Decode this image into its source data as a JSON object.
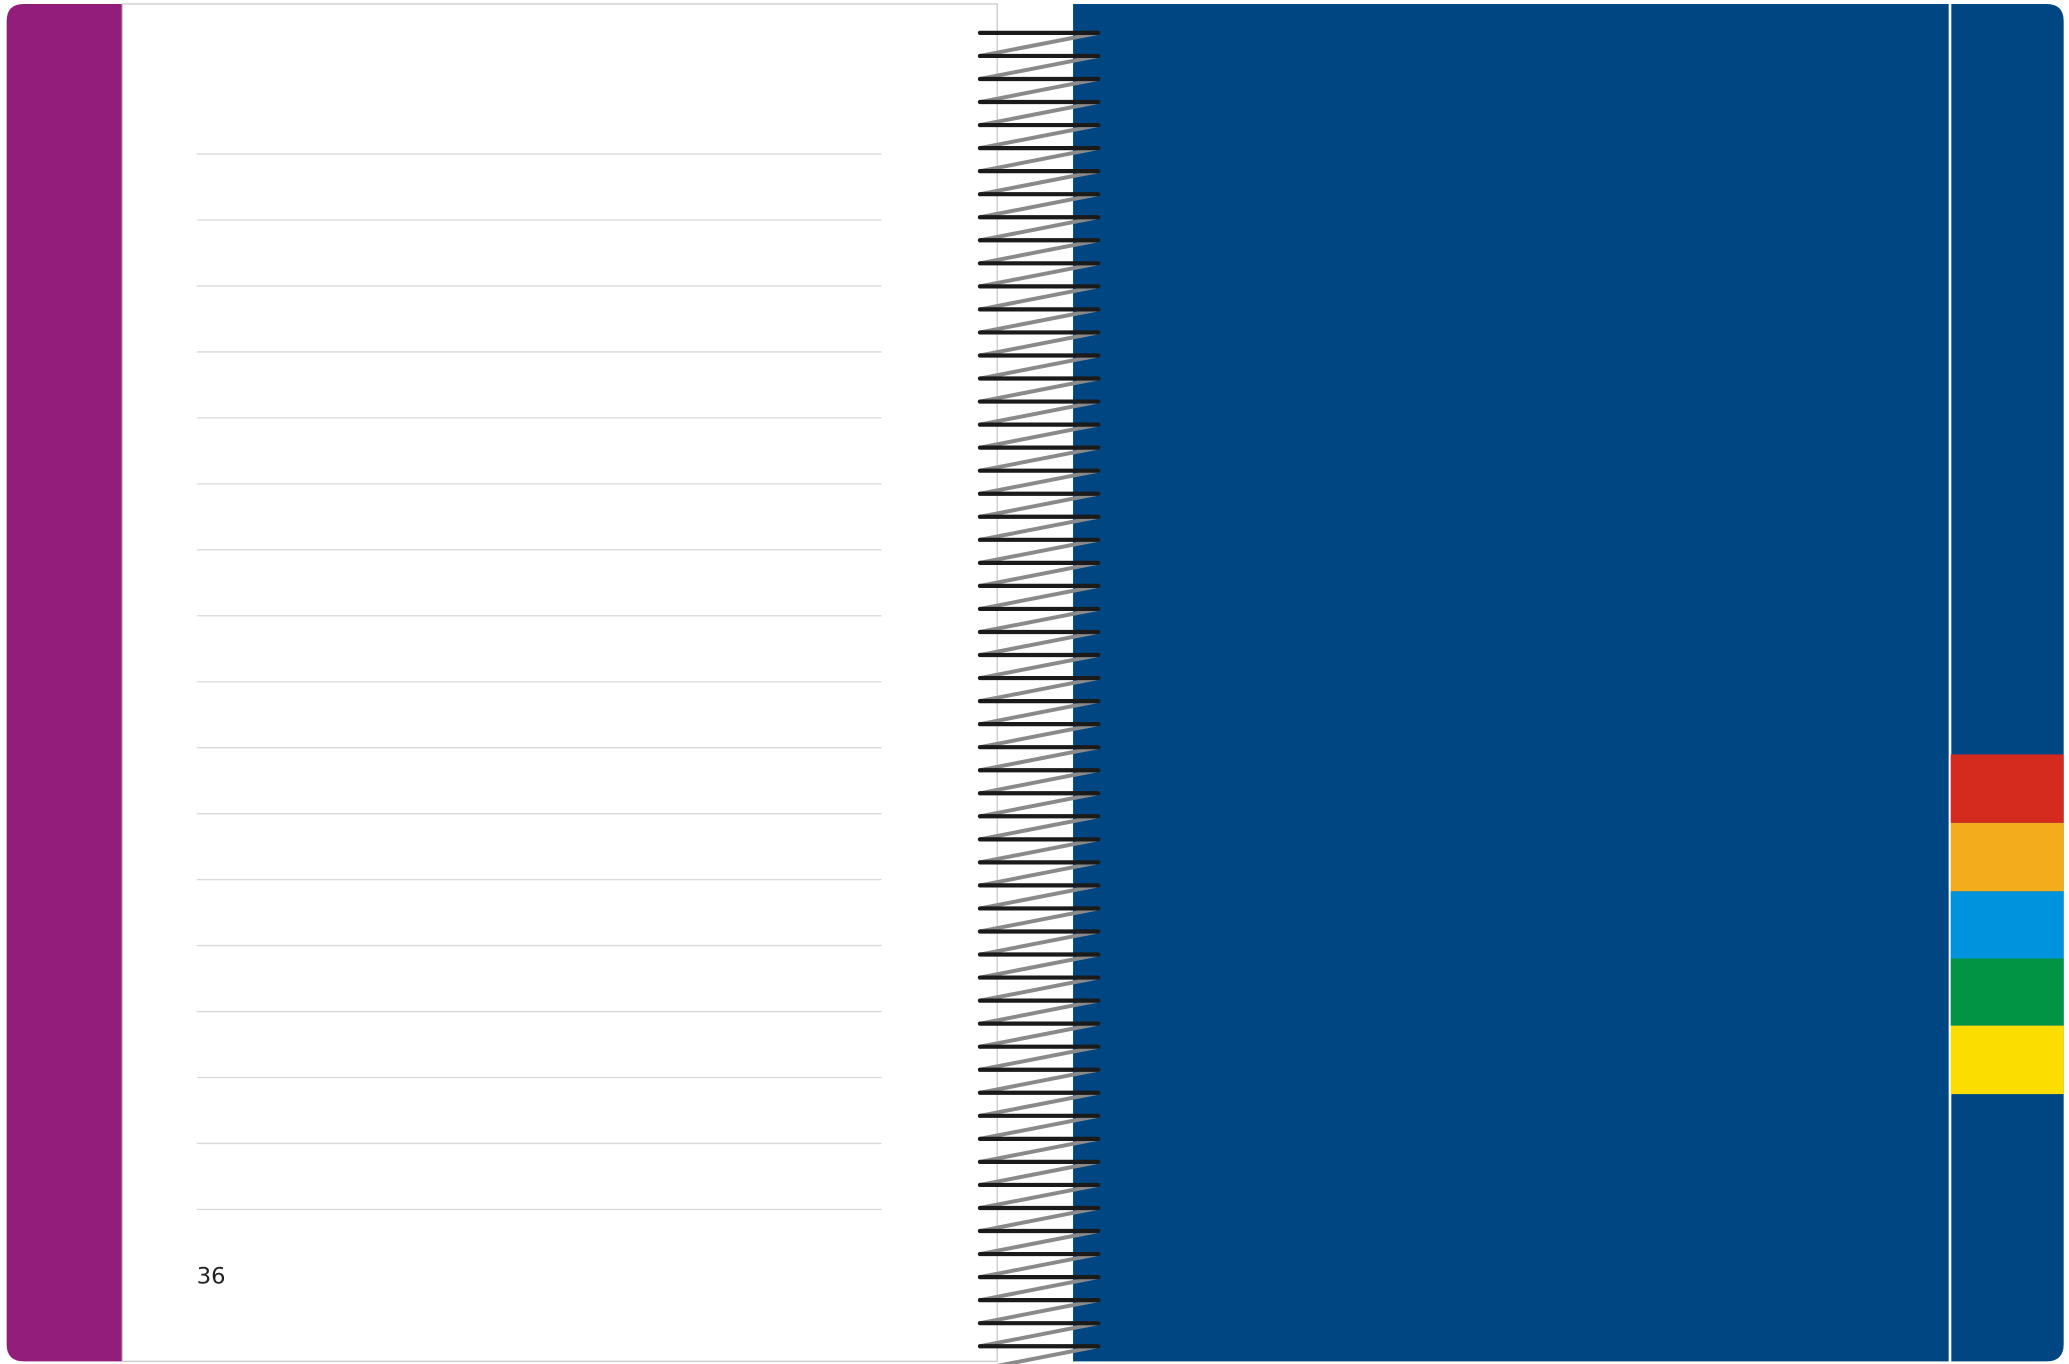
{
  "page_number": "36"
}
